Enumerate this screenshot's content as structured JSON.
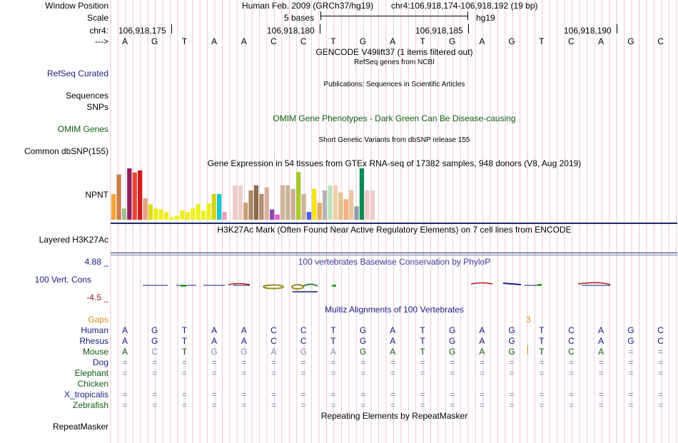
{
  "header": {
    "window_position_label": "Window Position",
    "assembly": "Human Feb. 2009 (GRCh37/hg19)",
    "position": "chr4:106,918,174-106,918,192 (19 bp)",
    "scale_label": "Scale",
    "scale_value": "5 bases",
    "scale_db": "hg19",
    "chrom_label": "chr4:",
    "ticks": [
      "106,918,175",
      "106,918,180",
      "106,918,185",
      "106,918,190"
    ],
    "strand_label": "--->",
    "sequence": [
      "A",
      "G",
      "T",
      "A",
      "A",
      "C",
      "C",
      "T",
      "G",
      "A",
      "T",
      "G",
      "A",
      "G",
      "T",
      "C",
      "A",
      "G",
      "C"
    ]
  },
  "tracks": {
    "gencode_title": "GENCODE V49lift37 (1 items filtered out)",
    "refseq_desc": "RefSeq genes from NCBI",
    "refseq_label": "RefSeq Curated",
    "publications_desc": "Publications: Sequences in Scientific Articles",
    "sequences_label": "Sequences",
    "snps_label": "SNPs",
    "omim_title": "OMIM Gene Phenotypes - Dark Green Can Be Disease-causing",
    "omim_label": "OMIM Genes",
    "dbsnp_desc": "Short Genetic Variants from dbSNP release 155",
    "dbsnp_label": "Common dbSNP(155)",
    "gtex_title": "Gene Expression in 54 tissues from GTEx RNA-seq of 17382 samples, 948 donors (V8, Aug 2019)",
    "gtex_gene": "NPNT",
    "h3k27ac_title": "H3K27Ac Mark (Often Found Near Active Regulatory Elements) on 7 cell lines from ENCODE",
    "h3k27ac_label": "Layered H3K27Ac",
    "phylop_title": "100 vertebrates Basewise Conservation by PhyloP",
    "phylop_max": "4.88 _",
    "phylop_min": "-4.5 _",
    "phylop_label": "100 Vert. Cons",
    "multiz_title": "Multiz Alignments of 100 Vertebrates",
    "gaps_label": "Gaps",
    "gap_count": "3",
    "repeat_title": "Repeating Elements by RepeatMasker",
    "repeat_label": "RepeatMasker"
  },
  "gtex_bars": [
    {
      "v": 0.5,
      "c": "#f2a63a"
    },
    {
      "v": 0.88,
      "c": "#cc7e4a"
    },
    {
      "v": 0.22,
      "c": "#9fc08f"
    },
    {
      "v": 1.0,
      "c": "#8e1f5a"
    },
    {
      "v": 0.92,
      "c": "#e84434"
    },
    {
      "v": 0.96,
      "c": "#d21c1c"
    },
    {
      "v": 0.42,
      "c": "#e7a488"
    },
    {
      "v": 0.3,
      "c": "#dddd1c"
    },
    {
      "v": 0.22,
      "c": "#eeee22"
    },
    {
      "v": 0.2,
      "c": "#eeee22"
    },
    {
      "v": 0.15,
      "c": "#eeee22"
    },
    {
      "v": 0.05,
      "c": "#eeee22"
    },
    {
      "v": 0.08,
      "c": "#eeee22"
    },
    {
      "v": 0.18,
      "c": "#eeee22"
    },
    {
      "v": 0.15,
      "c": "#eeee22"
    },
    {
      "v": 0.22,
      "c": "#eeee22"
    },
    {
      "v": 0.3,
      "c": "#eeee22"
    },
    {
      "v": 0.18,
      "c": "#eeee22"
    },
    {
      "v": 0.32,
      "c": "#eeee22"
    },
    {
      "v": 0.5,
      "c": "#d4d41a"
    },
    {
      "v": 0.5,
      "c": "#19c8c8"
    },
    {
      "v": 0.15,
      "c": "#e5a3c6"
    },
    {
      "v": 0.0,
      "c": "#ffffff"
    },
    {
      "v": 0.67,
      "c": "#efc8c8"
    },
    {
      "v": 0.67,
      "c": "#eecdcd"
    },
    {
      "v": 0.33,
      "c": "#c9a07a"
    },
    {
      "v": 0.57,
      "c": "#a98a6a"
    },
    {
      "v": 0.67,
      "c": "#8a6a4a"
    },
    {
      "v": 0.5,
      "c": "#b08f6f"
    },
    {
      "v": 0.63,
      "c": "#d9b0a0"
    },
    {
      "v": 0.2,
      "c": "#8f4bb0"
    },
    {
      "v": 0.1,
      "c": "#e25bd0"
    },
    {
      "v": 0.67,
      "c": "#d2b49a"
    },
    {
      "v": 0.67,
      "c": "#c8b39a"
    },
    {
      "v": 0.6,
      "c": "#c8b094"
    },
    {
      "v": 0.93,
      "c": "#a8c82c"
    },
    {
      "v": 0.5,
      "c": "#cdb498"
    },
    {
      "v": 0.15,
      "c": "#4c5ce6"
    },
    {
      "v": 0.6,
      "c": "#f4e318"
    },
    {
      "v": 0.33,
      "c": "#e1ad6a"
    },
    {
      "v": 0.57,
      "c": "#b5b5b5"
    },
    {
      "v": 0.67,
      "c": "#bce2bc"
    },
    {
      "v": 0.67,
      "c": "#f0cfa8"
    },
    {
      "v": 0.53,
      "c": "#e5c08f"
    },
    {
      "v": 0.4,
      "c": "#f3ae7a"
    },
    {
      "v": 0.57,
      "c": "#e8c6a0"
    },
    {
      "v": 0.26,
      "c": "#8d9ba8"
    },
    {
      "v": 1.0,
      "c": "#0d8a55"
    },
    {
      "v": 0.57,
      "c": "#efc9c9"
    },
    {
      "v": 0.57,
      "c": "#eecccc"
    }
  ],
  "multiz": [
    {
      "species": "Human",
      "color": "#1a1a80",
      "bases": [
        "A",
        "G",
        "T",
        "A",
        "A",
        "C",
        "C",
        "T",
        "G",
        "A",
        "T",
        "G",
        "A",
        "G",
        "T",
        "C",
        "A",
        "G",
        "C"
      ],
      "faint": []
    },
    {
      "species": "Rhesus",
      "color": "#1a1a80",
      "bases": [
        "A",
        "G",
        "T",
        "A",
        "A",
        "C",
        "C",
        "T",
        "G",
        "A",
        "T",
        "G",
        "A",
        "G",
        "T",
        "C",
        "A",
        "G",
        "C"
      ],
      "faint": []
    },
    {
      "species": "Mouse",
      "color": "#0d5c0d",
      "bases": [
        "A",
        "C",
        "T",
        "G",
        "G",
        "A",
        "G",
        "A",
        "G",
        "A",
        "T",
        "G",
        "A",
        "G",
        "T",
        "C",
        "A",
        "=",
        "="
      ],
      "faint": [
        1,
        3,
        4,
        5,
        6,
        7,
        17,
        18
      ]
    },
    {
      "species": "Dog",
      "color": "#1a1a80",
      "bases": [
        "=",
        "=",
        "=",
        "=",
        "=",
        "=",
        "=",
        "=",
        "=",
        "=",
        "=",
        "=",
        "=",
        "=",
        "=",
        "=",
        "=",
        "=",
        "="
      ],
      "faint": [
        0,
        1,
        2,
        3,
        4,
        5,
        6,
        7,
        8,
        9,
        10,
        11,
        12,
        13,
        14,
        15,
        16,
        17,
        18
      ]
    },
    {
      "species": "Elephant",
      "color": "#0d5c0d",
      "bases": [
        "=",
        "=",
        "=",
        "=",
        "=",
        "=",
        "=",
        "=",
        "=",
        "=",
        "=",
        "=",
        "=",
        "=",
        "=",
        "=",
        "=",
        "=",
        "="
      ],
      "faint": [
        0,
        1,
        2,
        3,
        4,
        5,
        6,
        7,
        8,
        9,
        10,
        11,
        12,
        13,
        14,
        15,
        16,
        17,
        18
      ]
    },
    {
      "species": "Chicken",
      "color": "#0d5c0d",
      "bases": [],
      "faint": []
    },
    {
      "species": "X_tropicalis",
      "color": "#1a1a80",
      "bases": [
        "=",
        "=",
        "=",
        "=",
        "=",
        "=",
        "=",
        "=",
        "=",
        "=",
        "=",
        "=",
        "=",
        "=",
        "=",
        "=",
        "=",
        "=",
        "="
      ],
      "faint": [
        0,
        1,
        2,
        3,
        4,
        5,
        6,
        7,
        8,
        9,
        10,
        11,
        12,
        13,
        14,
        15,
        16,
        17,
        18
      ]
    },
    {
      "species": "Zebrafish",
      "color": "#0d5c0d",
      "bases": [
        "=",
        "=",
        "=",
        "=",
        "=",
        "=",
        "=",
        "=",
        "=",
        "=",
        "=",
        "=",
        "=",
        "=",
        "=",
        "=",
        "=",
        "=",
        "="
      ],
      "faint": [
        0,
        1,
        2,
        3,
        4,
        5,
        6,
        7,
        8,
        9,
        10,
        11,
        12,
        13,
        14,
        15,
        16,
        17,
        18
      ]
    }
  ],
  "colors": {
    "label_navy": "#1a1a80",
    "label_green": "#0d5c0d",
    "gaps_orange": "#d98d1a",
    "separator": "#1e2a66",
    "grid_line": "#e8c9d6",
    "faint_base": "#8a8ab0"
  }
}
